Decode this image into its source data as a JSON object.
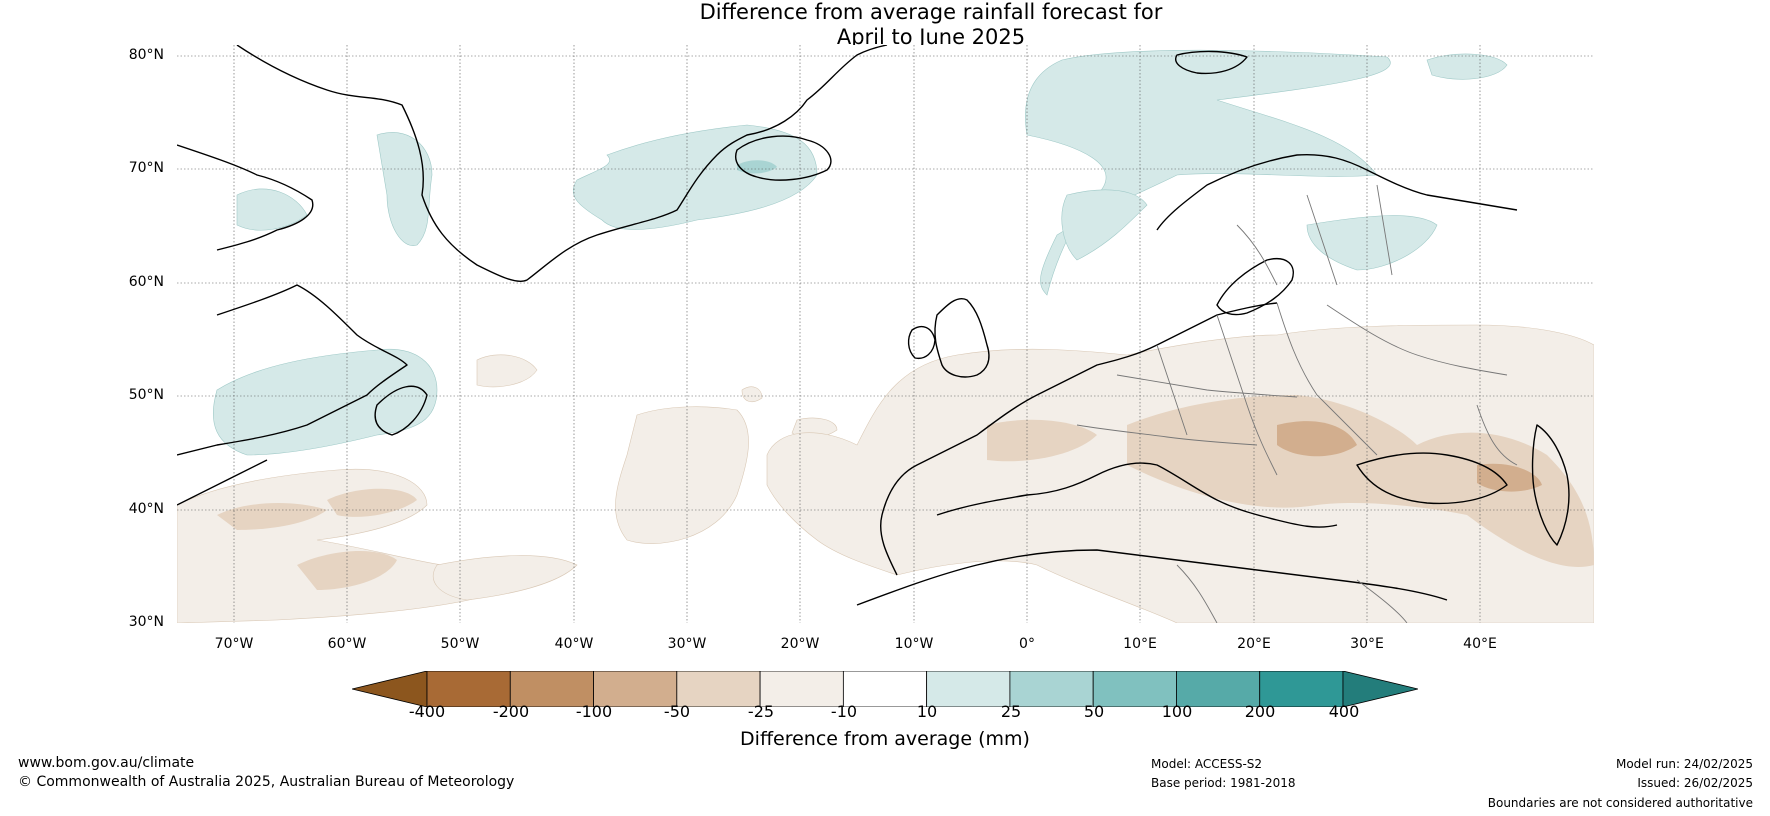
{
  "title": {
    "line1": "Difference from average rainfall forecast for",
    "line2": "April to June 2025"
  },
  "map": {
    "extent": {
      "lon_min": -75,
      "lon_max": 50,
      "lat_min": 30,
      "lat_max": 81
    },
    "latitudes": [
      {
        "value": 80,
        "label": "80°N"
      },
      {
        "value": 70,
        "label": "70°N"
      },
      {
        "value": 60,
        "label": "60°N"
      },
      {
        "value": 50,
        "label": "50°N"
      },
      {
        "value": 40,
        "label": "40°N"
      },
      {
        "value": 30,
        "label": "30°N"
      }
    ],
    "longitudes": [
      {
        "value": -70,
        "label": "70°W"
      },
      {
        "value": -60,
        "label": "60°W"
      },
      {
        "value": -50,
        "label": "50°W"
      },
      {
        "value": -40,
        "label": "40°W"
      },
      {
        "value": -30,
        "label": "30°W"
      },
      {
        "value": -20,
        "label": "20°W"
      },
      {
        "value": -10,
        "label": "10°W"
      },
      {
        "value": 0,
        "label": "0°"
      },
      {
        "value": 10,
        "label": "10°E"
      },
      {
        "value": 20,
        "label": "20°E"
      },
      {
        "value": 30,
        "label": "30°E"
      },
      {
        "value": 40,
        "label": "40°E"
      }
    ]
  },
  "colorbar": {
    "label": "Difference from average (mm)",
    "ticks": [
      "-400",
      "-200",
      "-100",
      "-50",
      "-25",
      "-10",
      "10",
      "25",
      "50",
      "100",
      "200",
      "400"
    ],
    "colors": [
      "#a86a35",
      "#c08f63",
      "#d2ae8e",
      "#e6d4c2",
      "#f3eee8",
      "#ffffff",
      "#d5e9e8",
      "#a9d4d3",
      "#80c1bf",
      "#56aaa8",
      "#2f9896"
    ],
    "extend_low_color": "#8c561e",
    "extend_high_color": "#237d7b"
  },
  "footer": {
    "website": "www.bom.gov.au/climate",
    "copyright": "© Commonwealth of Australia 2025, Australian Bureau of Meteorology",
    "model": "Model: ACCESS-S2",
    "base_period": "Base period: 1981-2018",
    "model_run": "Model run: 24/02/2025",
    "issued": "Issued: 26/02/2025",
    "disclaimer": "Boundaries are not considered authoritative"
  }
}
